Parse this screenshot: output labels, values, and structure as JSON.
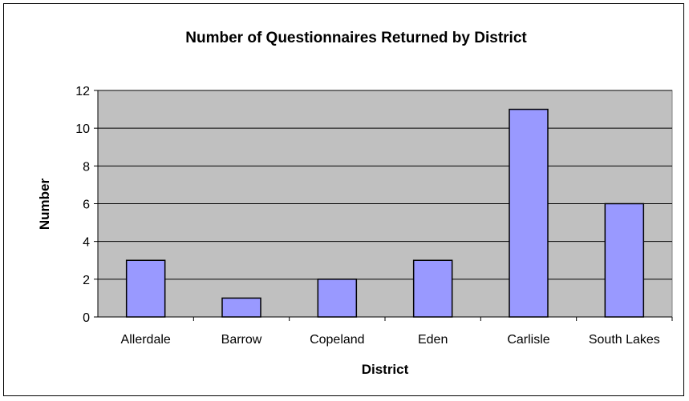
{
  "chart_data": {
    "type": "bar",
    "title": "Number of Questionnaires Returned by District",
    "xlabel": "District",
    "ylabel": "Number",
    "categories": [
      "Allerdale",
      "Barrow",
      "Copeland",
      "Eden",
      "Carlisle",
      "South Lakes"
    ],
    "values": [
      3,
      1,
      2,
      3,
      11,
      6
    ],
    "ylim": [
      0,
      12
    ],
    "yticks": [
      0,
      2,
      4,
      6,
      8,
      10,
      12
    ],
    "grid": true,
    "legend": "none"
  },
  "colors": {
    "plot_background": "#c0c0c0",
    "bar_fill": "#9999ff",
    "bar_stroke": "#000000",
    "gridline": "#000000"
  }
}
